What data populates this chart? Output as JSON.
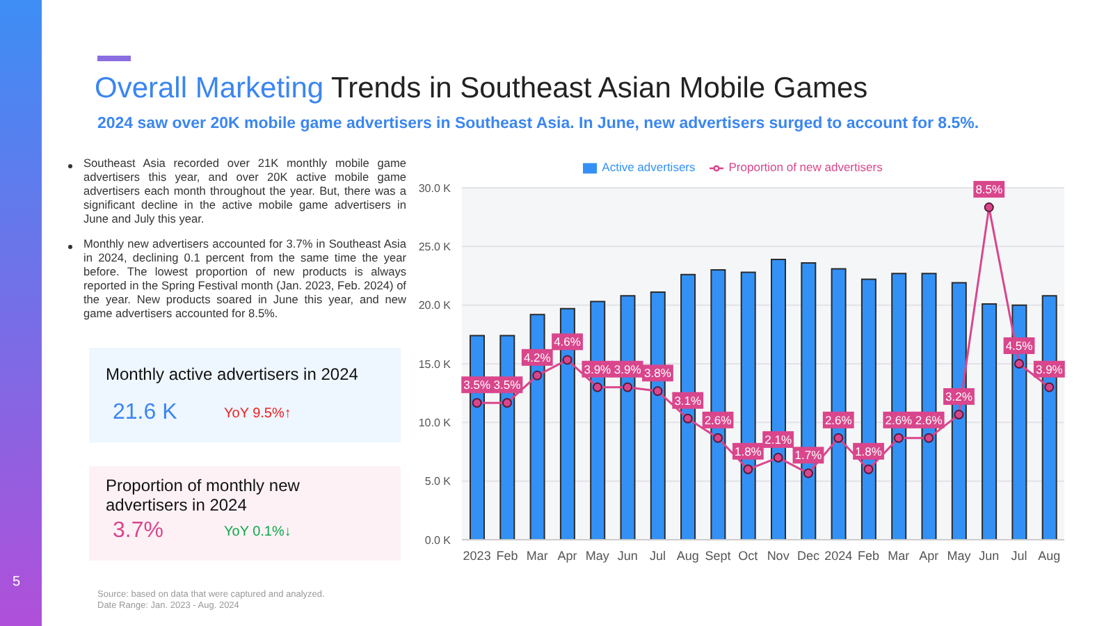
{
  "chart_data": {
    "type": "bar",
    "title": "Overall Marketing Trends in Southeast Asian Mobile Games",
    "subtitle": "2024 saw over 20K mobile game advertisers in Southeast Asia. In June, new advertisers surged to account for 8.5%.",
    "annotations": [
      "Southeast Asia recorded over 21K monthly mobile game advertisers this year, and over 20K active mobile game advertisers each month throughout the year. But, there was a significant decline in the active mobile game advertisers in June and July this year.",
      "Monthly new advertisers accounted for 3.7% in Southeast Asia in 2024, declining 0.1 percent from the same time the year before. The lowest proportion of new products is always reported in the Spring Festival month (Jan. 2023, Feb. 2024) of the year. New products soared in June this year, and new game advertisers accounted for 8.5%.",
      "Monthly active advertisers in 2024",
      "21.6 K",
      "YoY 9.5%↑",
      "Proportion of monthly new advertisers in 2024",
      "3.7%",
      "YoY 0.1%↓",
      "Source: based on data that were captured and analyzed.",
      "Date Range: Jan. 2023 - Aug. 2024",
      "5"
    ],
    "categories": [
      "2023",
      "Feb",
      "Mar",
      "Apr",
      "May",
      "Jun",
      "Jul",
      "Aug",
      "Sept",
      "Oct",
      "Nov",
      "Dec",
      "2024",
      "Feb",
      "Mar",
      "Apr",
      "May",
      "Jun",
      "Jul",
      "Aug"
    ],
    "series": [
      {
        "name": "Active advertisers",
        "color": "#3391f6",
        "values": [
          17.4,
          17.4,
          19.2,
          19.7,
          20.3,
          20.8,
          21.1,
          22.6,
          23.0,
          22.8,
          23.9,
          23.6,
          23.1,
          22.2,
          22.7,
          22.7,
          21.9,
          20.1,
          20.0,
          20.8
        ]
      },
      {
        "name": "Proportion of new advertisers",
        "type": "line",
        "axis": "y2",
        "color": "#d9468c",
        "values": [
          3.5,
          3.5,
          4.2,
          4.6,
          3.9,
          3.9,
          3.8,
          3.1,
          2.6,
          1.8,
          2.1,
          1.7,
          2.6,
          1.8,
          2.6,
          2.6,
          3.2,
          8.5,
          4.5,
          3.9
        ],
        "value_labels": [
          "3.5%",
          "3.5%",
          "4.2%",
          "4.6%",
          "3.9%",
          "3.9%",
          "3.8%",
          "3.1%",
          "2.6%",
          "1.8%",
          "2.1%",
          "1.7%",
          "2.6%",
          "1.8%",
          "2.6%",
          "2.6%",
          "3.2%",
          "8.5%",
          "4.5%",
          "3.9%"
        ]
      }
    ],
    "ylim": [
      0,
      30
    ],
    "yticks": [
      {
        "value": 0,
        "label": "0.0 K"
      },
      {
        "value": 5,
        "label": "5.0 K"
      },
      {
        "value": 10,
        "label": "10.0 K"
      },
      {
        "value": 15,
        "label": "15.0 K"
      },
      {
        "value": 20,
        "label": "20.0 K"
      },
      {
        "value": 25,
        "label": "25.0 K"
      },
      {
        "value": 30,
        "label": "30.0 K"
      }
    ],
    "y2lim": [
      0,
      9
    ],
    "grid": "y",
    "legend": "top",
    "marker": "circle"
  }
}
